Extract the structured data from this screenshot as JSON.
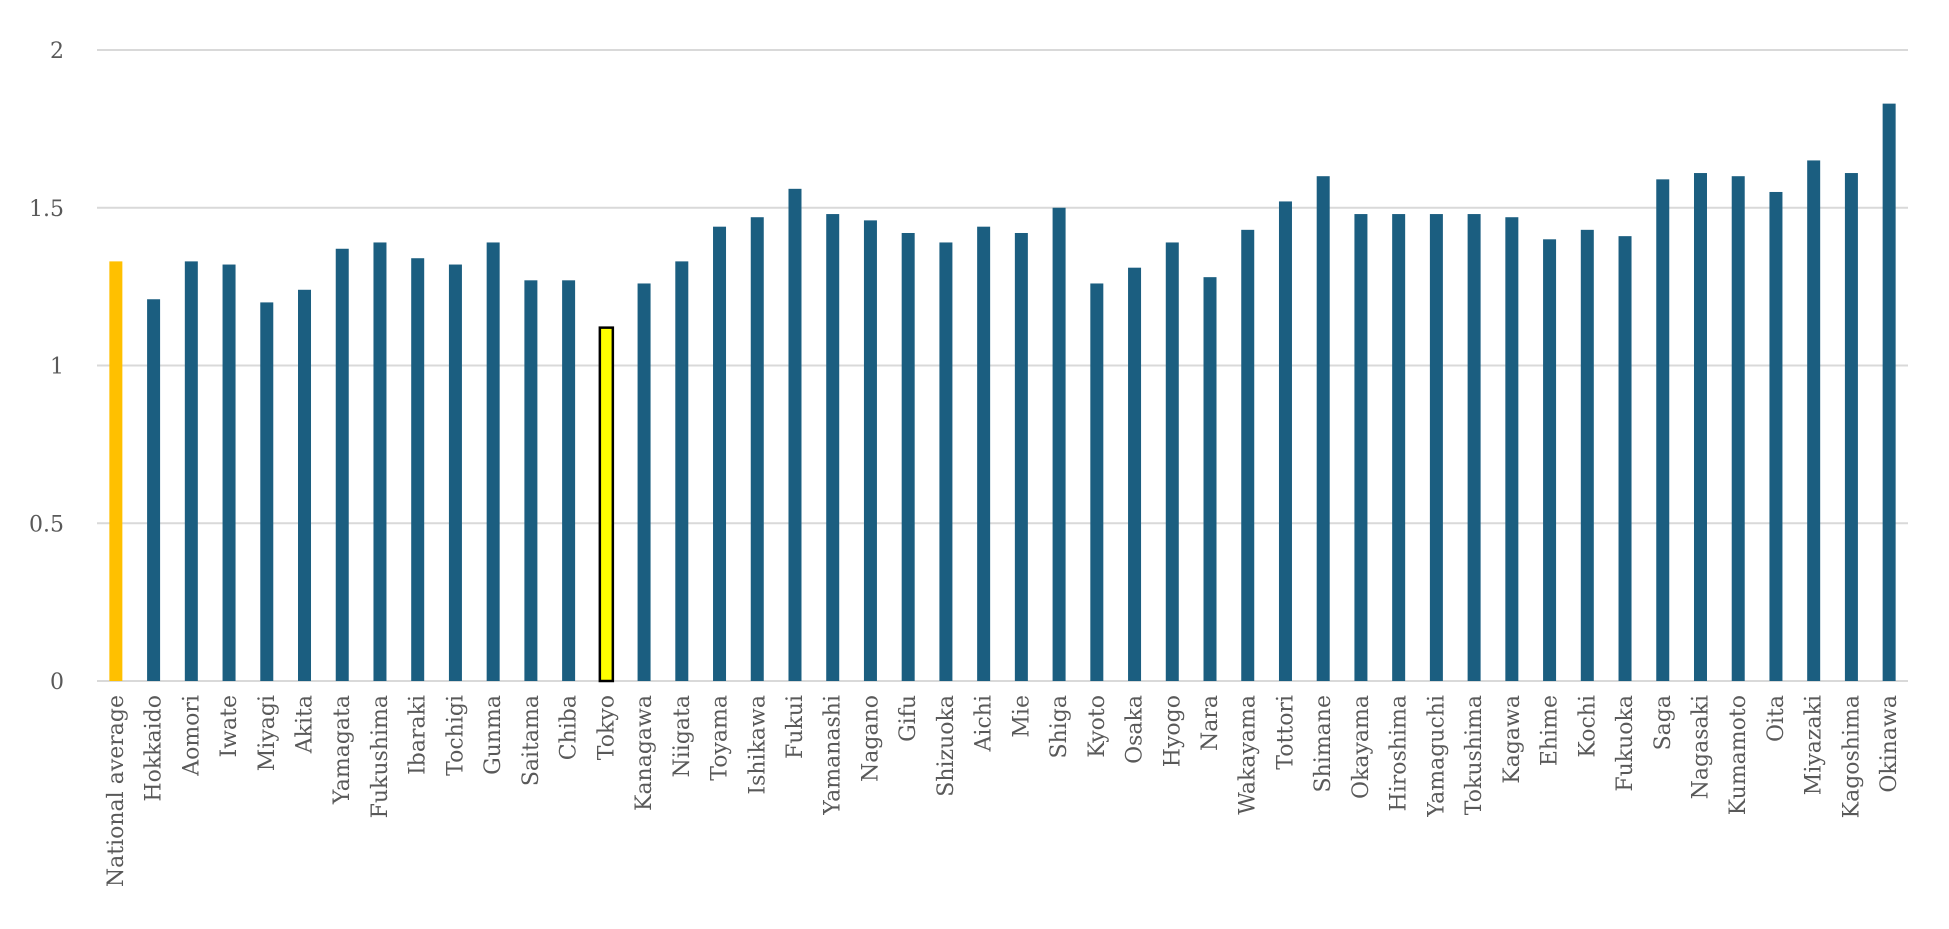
{
  "chart_data": {
    "type": "bar",
    "title": "",
    "xlabel": "",
    "ylabel": "",
    "ylim": [
      0,
      2
    ],
    "yticks": [
      0,
      0.5,
      1,
      1.5,
      2
    ],
    "grid": true,
    "categories": [
      "National average",
      "Hokkaido",
      "Aomori",
      "Iwate",
      "Miyagi",
      "Akita",
      "Yamagata",
      "Fukushima",
      "Ibaraki",
      "Tochigi",
      "Gunma",
      "Saitama",
      "Chiba",
      "Tokyo",
      "Kanagawa",
      "Niigata",
      "Toyama",
      "Ishikawa",
      "Fukui",
      "Yamanashi",
      "Nagano",
      "Gifu",
      "Shizuoka",
      "Aichi",
      "Mie",
      "Shiga",
      "Kyoto",
      "Osaka",
      "Hyogo",
      "Nara",
      "Wakayama",
      "Tottori",
      "Shimane",
      "Okayama",
      "Hiroshima",
      "Yamaguchi",
      "Tokushima",
      "Kagawa",
      "Ehime",
      "Kochi",
      "Fukuoka",
      "Saga",
      "Nagasaki",
      "Kumamoto",
      "Oita",
      "Miyazaki",
      "Kagoshima",
      "Okinawa"
    ],
    "values": [
      1.33,
      1.21,
      1.33,
      1.32,
      1.2,
      1.24,
      1.37,
      1.39,
      1.34,
      1.32,
      1.39,
      1.27,
      1.27,
      1.12,
      1.26,
      1.33,
      1.44,
      1.47,
      1.56,
      1.48,
      1.46,
      1.42,
      1.39,
      1.44,
      1.42,
      1.5,
      1.26,
      1.31,
      1.39,
      1.28,
      1.43,
      1.52,
      1.6,
      1.48,
      1.48,
      1.48,
      1.48,
      1.47,
      1.4,
      1.43,
      1.41,
      1.59,
      1.61,
      1.6,
      1.55,
      1.65,
      1.61,
      1.83
    ],
    "colors": {
      "default": "#1b5e80",
      "national_average": "#ffc000",
      "tokyo_fill": "#ffff00",
      "tokyo_outline": "#000000"
    }
  }
}
